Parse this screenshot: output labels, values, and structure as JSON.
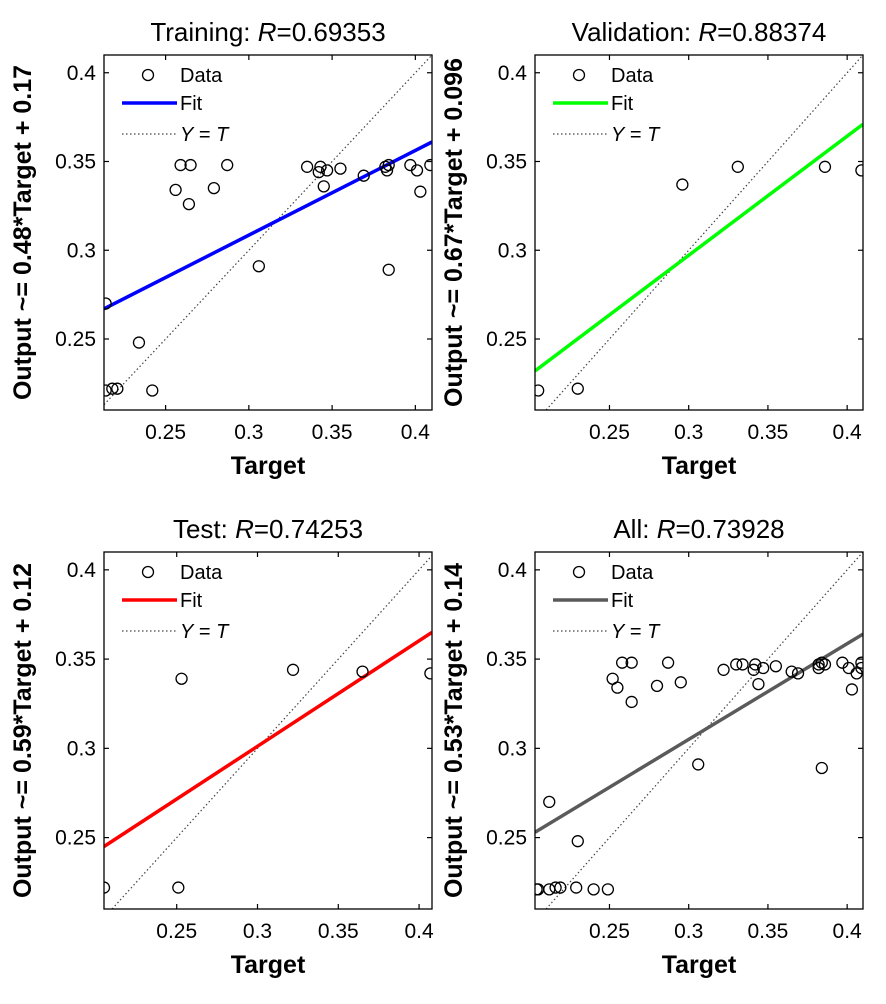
{
  "chart_data": [
    {
      "type": "scatter",
      "title_prefix": "Training: ",
      "title_r_symbol": "R",
      "title_r_value": "=0.69353",
      "xlabel": "Target",
      "ylabel": "Output ~= 0.48*Target + 0.17",
      "xlim": [
        0.213,
        0.41
      ],
      "ylim": [
        0.21,
        0.41
      ],
      "xticks": [
        0.25,
        0.3,
        0.35,
        0.4
      ],
      "xtick_labels": [
        "0.25",
        "0.3",
        "0.35",
        "0.4"
      ],
      "yticks": [
        0.25,
        0.3,
        0.35,
        0.4
      ],
      "ytick_labels": [
        "0.25",
        "0.3",
        "0.35",
        "0.4"
      ],
      "fit_color": "#0000ff",
      "fit_line": {
        "x": [
          0.213,
          0.41
        ],
        "y": [
          0.267,
          0.361
        ]
      },
      "legend": {
        "data": "Data",
        "fit": "Fit",
        "yt_y": "Y",
        "yt_eq": " =  ",
        "yt_t": "T"
      },
      "points": [
        {
          "x": 0.214,
          "y": 0.27
        },
        {
          "x": 0.214,
          "y": 0.221
        },
        {
          "x": 0.218,
          "y": 0.222
        },
        {
          "x": 0.221,
          "y": 0.222
        },
        {
          "x": 0.234,
          "y": 0.248
        },
        {
          "x": 0.242,
          "y": 0.221
        },
        {
          "x": 0.256,
          "y": 0.334
        },
        {
          "x": 0.259,
          "y": 0.348
        },
        {
          "x": 0.264,
          "y": 0.326
        },
        {
          "x": 0.265,
          "y": 0.348
        },
        {
          "x": 0.279,
          "y": 0.335
        },
        {
          "x": 0.287,
          "y": 0.348
        },
        {
          "x": 0.306,
          "y": 0.291
        },
        {
          "x": 0.335,
          "y": 0.347
        },
        {
          "x": 0.342,
          "y": 0.344
        },
        {
          "x": 0.343,
          "y": 0.347
        },
        {
          "x": 0.345,
          "y": 0.336
        },
        {
          "x": 0.347,
          "y": 0.345
        },
        {
          "x": 0.355,
          "y": 0.346
        },
        {
          "x": 0.369,
          "y": 0.342
        },
        {
          "x": 0.382,
          "y": 0.347
        },
        {
          "x": 0.383,
          "y": 0.345
        },
        {
          "x": 0.384,
          "y": 0.348
        },
        {
          "x": 0.384,
          "y": 0.289
        },
        {
          "x": 0.397,
          "y": 0.348
        },
        {
          "x": 0.401,
          "y": 0.345
        },
        {
          "x": 0.403,
          "y": 0.333
        },
        {
          "x": 0.409,
          "y": 0.348
        }
      ]
    },
    {
      "type": "scatter",
      "title_prefix": "Validation: ",
      "title_r_symbol": "R",
      "title_r_value": "=0.88374",
      "xlabel": "Target",
      "ylabel": "Output ~= 0.67*Target + 0.096",
      "xlim": [
        0.203,
        0.41
      ],
      "ylim": [
        0.21,
        0.41
      ],
      "xticks": [
        0.25,
        0.3,
        0.35,
        0.4
      ],
      "xtick_labels": [
        "0.25",
        "0.3",
        "0.35",
        "0.4"
      ],
      "yticks": [
        0.25,
        0.3,
        0.35,
        0.4
      ],
      "ytick_labels": [
        "0.25",
        "0.3",
        "0.35",
        "0.4"
      ],
      "fit_color": "#00ff00",
      "fit_line": {
        "x": [
          0.203,
          0.41
        ],
        "y": [
          0.232,
          0.371
        ]
      },
      "legend": {
        "data": "Data",
        "fit": "Fit",
        "yt_y": "Y",
        "yt_eq": " =  ",
        "yt_t": "T"
      },
      "points": [
        {
          "x": 0.205,
          "y": 0.221
        },
        {
          "x": 0.23,
          "y": 0.222
        },
        {
          "x": 0.296,
          "y": 0.337
        },
        {
          "x": 0.331,
          "y": 0.347
        },
        {
          "x": 0.386,
          "y": 0.347
        },
        {
          "x": 0.409,
          "y": 0.345
        }
      ]
    },
    {
      "type": "scatter",
      "title_prefix": "Test: ",
      "title_r_symbol": "R",
      "title_r_value": "=0.74253",
      "xlabel": "Target",
      "ylabel": "Output ~= 0.59*Target + 0.12",
      "xlim": [
        0.205,
        0.408
      ],
      "ylim": [
        0.21,
        0.41
      ],
      "xticks": [
        0.25,
        0.3,
        0.35,
        0.4
      ],
      "xtick_labels": [
        "0.25",
        "0.3",
        "0.35",
        "0.4"
      ],
      "yticks": [
        0.25,
        0.3,
        0.35,
        0.4
      ],
      "ytick_labels": [
        "0.25",
        "0.3",
        "0.35",
        "0.4"
      ],
      "fit_color": "#ff0000",
      "fit_line": {
        "x": [
          0.205,
          0.408
        ],
        "y": [
          0.245,
          0.365
        ]
      },
      "legend": {
        "data": "Data",
        "fit": "Fit",
        "yt_y": "Y",
        "yt_eq": " =  ",
        "yt_t": "T"
      },
      "points": [
        {
          "x": 0.205,
          "y": 0.222
        },
        {
          "x": 0.251,
          "y": 0.222
        },
        {
          "x": 0.253,
          "y": 0.339
        },
        {
          "x": 0.322,
          "y": 0.344
        },
        {
          "x": 0.365,
          "y": 0.343
        },
        {
          "x": 0.407,
          "y": 0.342
        }
      ]
    },
    {
      "type": "scatter",
      "title_prefix": "All: ",
      "title_r_symbol": "R",
      "title_r_value": "=0.73928",
      "xlabel": "Target",
      "ylabel": "Output ~= 0.53*Target + 0.14",
      "xlim": [
        0.203,
        0.41
      ],
      "ylim": [
        0.21,
        0.41
      ],
      "xticks": [
        0.25,
        0.3,
        0.35,
        0.4
      ],
      "xtick_labels": [
        "0.25",
        "0.3",
        "0.35",
        "0.4"
      ],
      "yticks": [
        0.25,
        0.3,
        0.35,
        0.4
      ],
      "ytick_labels": [
        "0.25",
        "0.3",
        "0.35",
        "0.4"
      ],
      "fit_color": "#5a5a5a",
      "fit_line": {
        "x": [
          0.203,
          0.41
        ],
        "y": [
          0.253,
          0.364
        ]
      },
      "legend": {
        "data": "Data",
        "fit": "Fit",
        "yt_y": "Y",
        "yt_eq": " =  ",
        "yt_t": "T"
      },
      "points": [
        {
          "x": 0.204,
          "y": 0.221
        },
        {
          "x": 0.205,
          "y": 0.221
        },
        {
          "x": 0.212,
          "y": 0.27
        },
        {
          "x": 0.212,
          "y": 0.221
        },
        {
          "x": 0.216,
          "y": 0.222
        },
        {
          "x": 0.219,
          "y": 0.222
        },
        {
          "x": 0.229,
          "y": 0.222
        },
        {
          "x": 0.23,
          "y": 0.248
        },
        {
          "x": 0.24,
          "y": 0.221
        },
        {
          "x": 0.249,
          "y": 0.221
        },
        {
          "x": 0.252,
          "y": 0.339
        },
        {
          "x": 0.255,
          "y": 0.334
        },
        {
          "x": 0.258,
          "y": 0.348
        },
        {
          "x": 0.264,
          "y": 0.326
        },
        {
          "x": 0.264,
          "y": 0.348
        },
        {
          "x": 0.28,
          "y": 0.335
        },
        {
          "x": 0.287,
          "y": 0.348
        },
        {
          "x": 0.295,
          "y": 0.337
        },
        {
          "x": 0.306,
          "y": 0.291
        },
        {
          "x": 0.322,
          "y": 0.344
        },
        {
          "x": 0.33,
          "y": 0.347
        },
        {
          "x": 0.334,
          "y": 0.347
        },
        {
          "x": 0.341,
          "y": 0.344
        },
        {
          "x": 0.342,
          "y": 0.347
        },
        {
          "x": 0.344,
          "y": 0.336
        },
        {
          "x": 0.347,
          "y": 0.345
        },
        {
          "x": 0.355,
          "y": 0.346
        },
        {
          "x": 0.365,
          "y": 0.343
        },
        {
          "x": 0.369,
          "y": 0.342
        },
        {
          "x": 0.382,
          "y": 0.347
        },
        {
          "x": 0.382,
          "y": 0.345
        },
        {
          "x": 0.384,
          "y": 0.348
        },
        {
          "x": 0.384,
          "y": 0.289
        },
        {
          "x": 0.386,
          "y": 0.347
        },
        {
          "x": 0.397,
          "y": 0.348
        },
        {
          "x": 0.401,
          "y": 0.345
        },
        {
          "x": 0.403,
          "y": 0.333
        },
        {
          "x": 0.406,
          "y": 0.342
        },
        {
          "x": 0.409,
          "y": 0.348
        },
        {
          "x": 0.409,
          "y": 0.345
        }
      ]
    }
  ]
}
